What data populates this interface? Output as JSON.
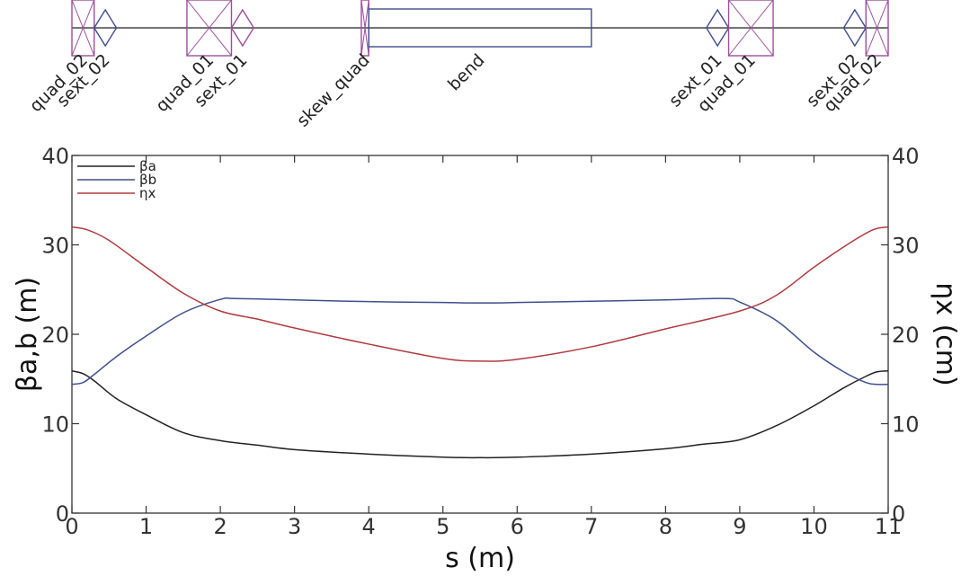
{
  "lattice": {
    "beamline_color": "#222222",
    "elements": [
      {
        "name": "quad_02",
        "type": "quad",
        "s_start": 0.0,
        "s_end": 0.3,
        "color": "#9b4f9b"
      },
      {
        "name": "sext_02",
        "type": "sext",
        "s_start": 0.3,
        "s_end": 0.6,
        "color": "#3e4f8f"
      },
      {
        "name": "quad_01",
        "type": "quad",
        "s_start": 1.55,
        "s_end": 2.15,
        "color": "#9b4f9b"
      },
      {
        "name": "sext_01",
        "type": "sext",
        "s_start": 2.15,
        "s_end": 2.45,
        "color": "#9b4f9b"
      },
      {
        "name": "skew_quad",
        "type": "skew",
        "s_start": 3.9,
        "s_end": 4.0,
        "color": "#9b4f9b"
      },
      {
        "name": "bend",
        "type": "bend",
        "s_start": 4.0,
        "s_end": 7.0,
        "color": "#3e4f8f"
      },
      {
        "name": "sext_01",
        "type": "sext",
        "s_start": 8.55,
        "s_end": 8.85,
        "color": "#3e4f8f"
      },
      {
        "name": "quad_01",
        "type": "quad",
        "s_start": 8.85,
        "s_end": 9.45,
        "color": "#9b4f9b"
      },
      {
        "name": "sext_02",
        "type": "sext",
        "s_start": 10.4,
        "s_end": 10.7,
        "color": "#3e4f8f"
      },
      {
        "name": "quad_02",
        "type": "quad",
        "s_start": 10.7,
        "s_end": 11.0,
        "color": "#9b4f9b"
      }
    ]
  },
  "chart_data": {
    "type": "line",
    "xlabel": "s (m)",
    "ylabel_left": "βa,b (m)",
    "ylabel_right": "ηx (cm)",
    "xlim": [
      0,
      11
    ],
    "ylim_left": [
      0,
      40
    ],
    "ylim_right": [
      0,
      40
    ],
    "xticks": [
      "0",
      "1",
      "2",
      "3",
      "4",
      "5",
      "6",
      "7",
      "8",
      "9",
      "10",
      "11"
    ],
    "yticks_left": [
      "0",
      "10",
      "20",
      "30",
      "40"
    ],
    "yticks_right": [
      "0",
      "10",
      "20",
      "30",
      "40"
    ],
    "grid": false,
    "legend_position": "top-left",
    "series": [
      {
        "name": "βa",
        "axis": "left",
        "color": "#222222",
        "x": [
          0,
          0.15,
          0.3,
          0.6,
          1.0,
          1.5,
          2.0,
          2.5,
          3.0,
          4.0,
          5.0,
          5.5,
          6.0,
          7.0,
          8.0,
          8.5,
          9.0,
          9.5,
          10.0,
          10.4,
          10.7,
          10.85,
          11.0
        ],
        "y": [
          15.9,
          15.6,
          14.8,
          12.8,
          11.0,
          9.0,
          8.1,
          7.6,
          7.1,
          6.6,
          6.25,
          6.2,
          6.25,
          6.6,
          7.2,
          7.7,
          8.2,
          9.8,
          12.0,
          14.0,
          15.3,
          15.8,
          15.9
        ]
      },
      {
        "name": "βb",
        "axis": "left",
        "color": "#3e4f8f",
        "x": [
          0,
          0.15,
          0.3,
          0.6,
          1.0,
          1.5,
          2.0,
          2.2,
          3.0,
          4.0,
          5.0,
          5.5,
          6.0,
          7.0,
          8.0,
          8.8,
          9.0,
          9.5,
          10.0,
          10.4,
          10.7,
          10.85,
          11.0
        ],
        "y": [
          14.4,
          14.6,
          15.5,
          17.5,
          19.8,
          22.4,
          23.9,
          24.0,
          23.85,
          23.65,
          23.55,
          23.5,
          23.55,
          23.7,
          23.85,
          24.0,
          23.6,
          21.5,
          18.0,
          15.8,
          14.6,
          14.4,
          14.4
        ]
      },
      {
        "name": "ηx",
        "axis": "right",
        "color": "#b23a3f",
        "x": [
          0,
          0.2,
          0.5,
          1.0,
          1.5,
          2.0,
          2.5,
          3.0,
          4.0,
          5.0,
          5.5,
          6.0,
          7.0,
          8.0,
          9.0,
          9.5,
          10.0,
          10.5,
          10.8,
          11.0
        ],
        "y": [
          32.0,
          31.7,
          30.5,
          27.5,
          24.6,
          22.6,
          21.7,
          20.7,
          18.9,
          17.3,
          17.0,
          17.2,
          18.6,
          20.6,
          22.6,
          24.4,
          27.5,
          30.3,
          31.7,
          32.0
        ]
      }
    ]
  }
}
